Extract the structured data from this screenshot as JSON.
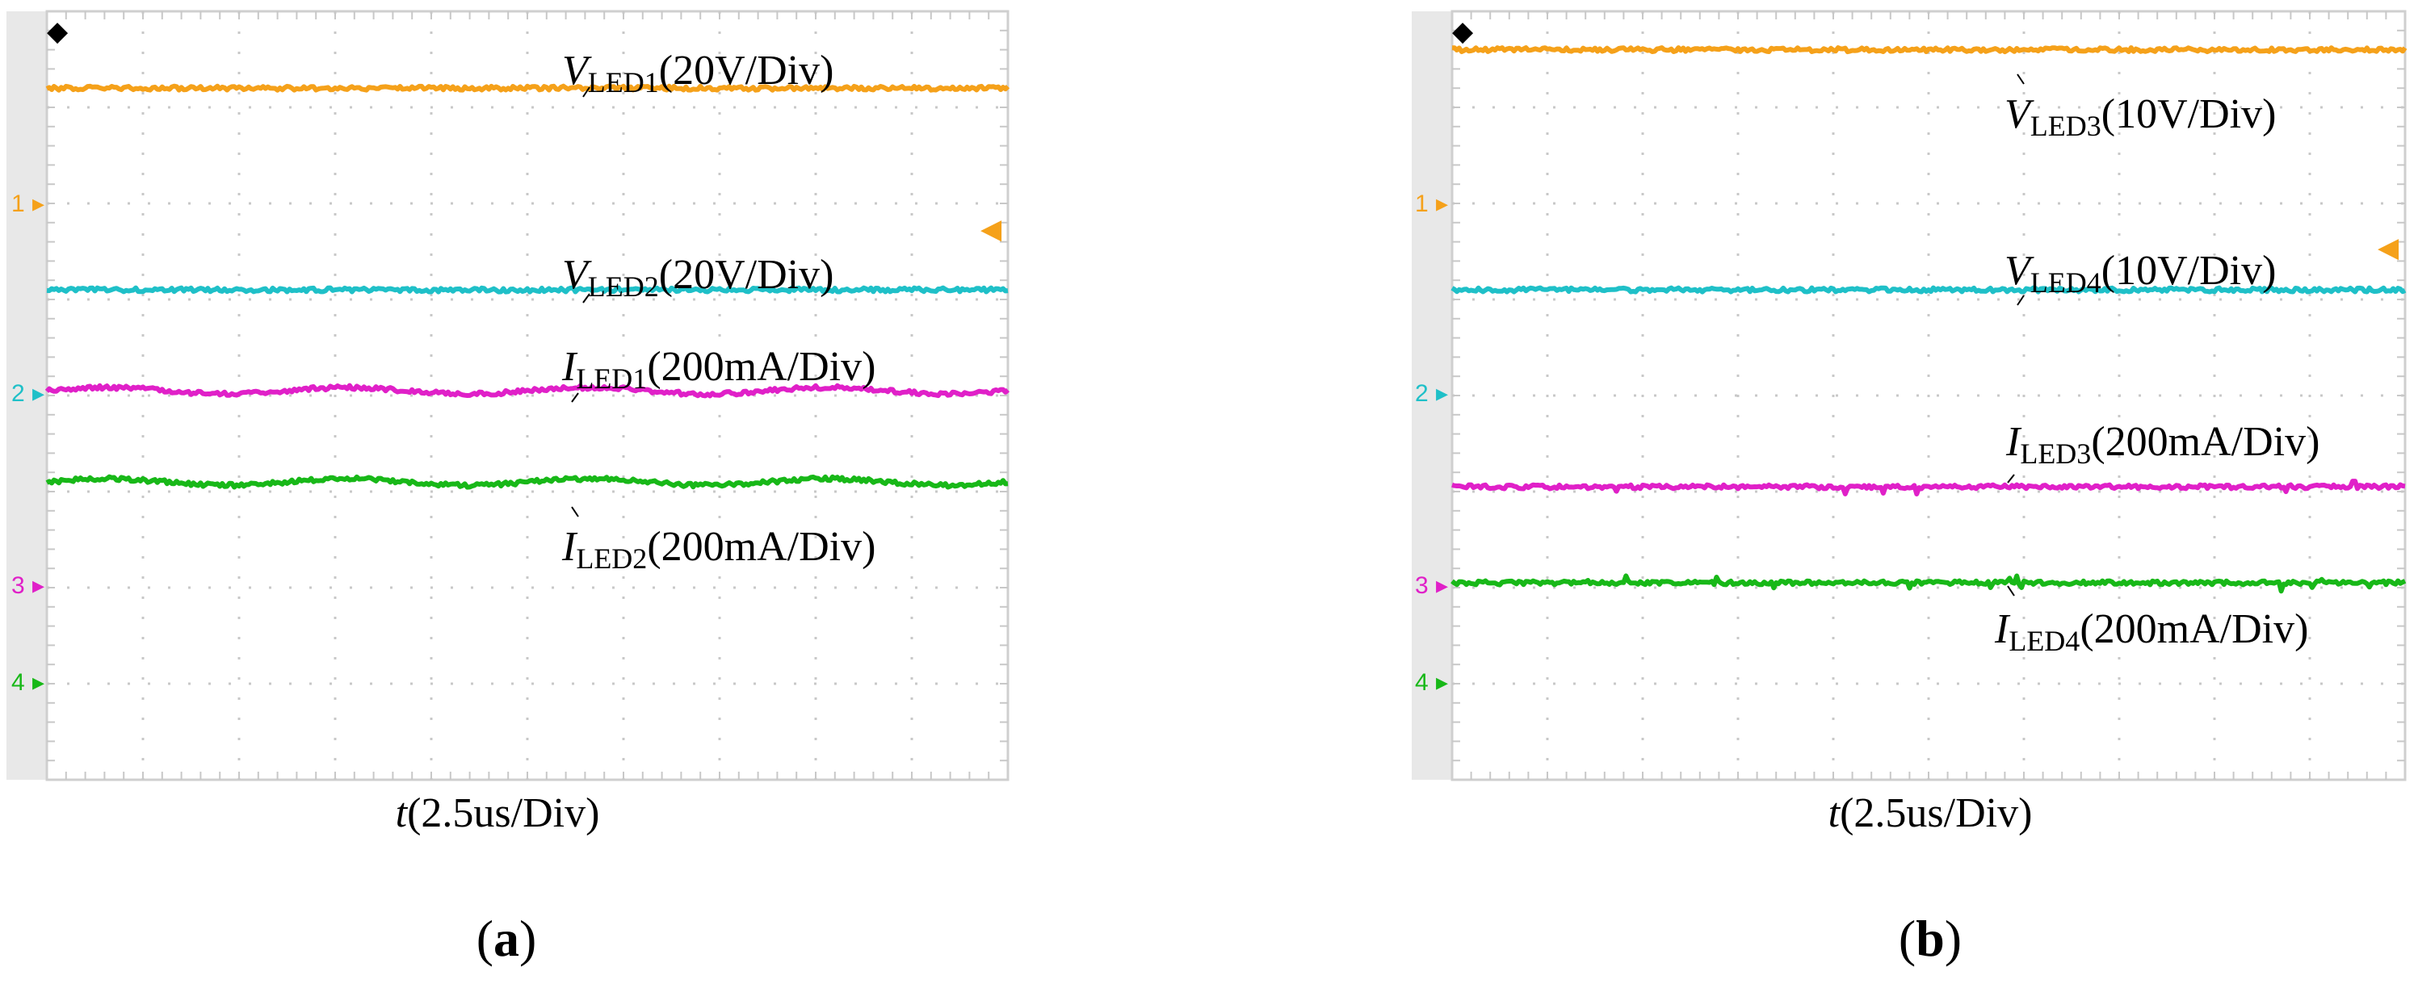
{
  "panels": [
    {
      "id": "a",
      "panel_label_open": "(",
      "panel_label_letter": "a",
      "panel_label_close": ")",
      "xlabel_italic": "t",
      "xlabel_rest": "(2.5us/Div)",
      "channel_markers": [
        "1",
        "2",
        "3",
        "4"
      ],
      "annotations": [
        {
          "sym": "V",
          "sub": "LED1",
          "rest": "(20V/Div)"
        },
        {
          "sym": "V",
          "sub": "LED2",
          "rest": "(20V/Div)"
        },
        {
          "sym": "I",
          "sub": "LED1",
          "rest": "(200mA/Div)"
        },
        {
          "sym": "I",
          "sub": "LED2",
          "rest": "(200mA/Div)"
        }
      ]
    },
    {
      "id": "b",
      "panel_label_open": "(",
      "panel_label_letter": "b",
      "panel_label_close": ")",
      "xlabel_italic": "t",
      "xlabel_rest": "(2.5us/Div)",
      "channel_markers": [
        "1",
        "2",
        "3",
        "4"
      ],
      "annotations": [
        {
          "sym": "V",
          "sub": "LED3",
          "rest": "(10V/Div)"
        },
        {
          "sym": "V",
          "sub": "LED4",
          "rest": "(10V/Div)"
        },
        {
          "sym": "I",
          "sub": "LED3",
          "rest": "(200mA/Div)"
        },
        {
          "sym": "I",
          "sub": "LED4",
          "rest": "(200mA/Div)"
        }
      ]
    }
  ],
  "chart_data": [
    {
      "type": "line",
      "grid": true,
      "x_divisions": 10,
      "y_divisions": 8,
      "channel_colors": [
        "#f5a11a",
        "#1fc0c8",
        "#e020c8",
        "#18b818"
      ],
      "series": [
        {
          "name": "VLED1(20V/Div)",
          "channel": 1,
          "level_div": 7.2,
          "ripple": "flat"
        },
        {
          "name": "VLED2(20V/Div)",
          "channel": 2,
          "level_div": 5.1,
          "ripple": "flat"
        },
        {
          "name": "ILED1(200mA/Div)",
          "channel": 3,
          "level_div": 4.05,
          "ripple": "slow"
        },
        {
          "name": "ILED2(200mA/Div)",
          "channel": 4,
          "level_div": 3.1,
          "ripple": "slow"
        }
      ]
    },
    {
      "type": "line",
      "grid": true,
      "x_divisions": 10,
      "y_divisions": 8,
      "channel_colors": [
        "#f5a11a",
        "#1fc0c8",
        "#e020c8",
        "#18b818"
      ],
      "series": [
        {
          "name": "VLED3(10V/Div)",
          "channel": 1,
          "level_div": 7.6,
          "ripple": "flat"
        },
        {
          "name": "VLED4(10V/Div)",
          "channel": 2,
          "level_div": 5.1,
          "ripple": "flat"
        },
        {
          "name": "ILED3(200mA/Div)",
          "channel": 3,
          "level_div": 3.05,
          "ripple": "spiky"
        },
        {
          "name": "ILED4(200mA/Div)",
          "channel": 4,
          "level_div": 2.05,
          "ripple": "spiky"
        }
      ]
    }
  ]
}
